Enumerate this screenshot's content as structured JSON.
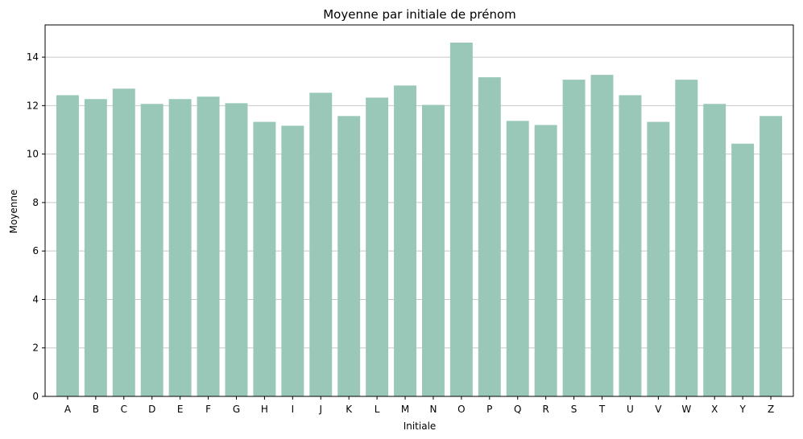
{
  "chart_data": {
    "type": "bar",
    "title": "Moyenne par initiale de prénom",
    "xlabel": "Initiale",
    "ylabel": "Moyenne",
    "categories": [
      "A",
      "B",
      "C",
      "D",
      "E",
      "F",
      "G",
      "H",
      "I",
      "J",
      "K",
      "L",
      "M",
      "N",
      "O",
      "P",
      "Q",
      "R",
      "S",
      "T",
      "U",
      "V",
      "W",
      "X",
      "Y",
      "Z"
    ],
    "values": [
      12.43,
      12.27,
      12.7,
      12.07,
      12.27,
      12.37,
      12.1,
      11.33,
      11.17,
      12.53,
      11.57,
      12.33,
      12.83,
      12.03,
      14.6,
      13.17,
      11.37,
      11.2,
      13.07,
      13.27,
      12.43,
      11.33,
      13.07,
      12.07,
      10.43,
      11.57
    ],
    "ylim": [
      0,
      15.33
    ],
    "yticks": [
      0,
      2,
      4,
      6,
      8,
      10,
      12,
      14
    ],
    "grid": "y",
    "bar_color": "#99c8b9"
  }
}
